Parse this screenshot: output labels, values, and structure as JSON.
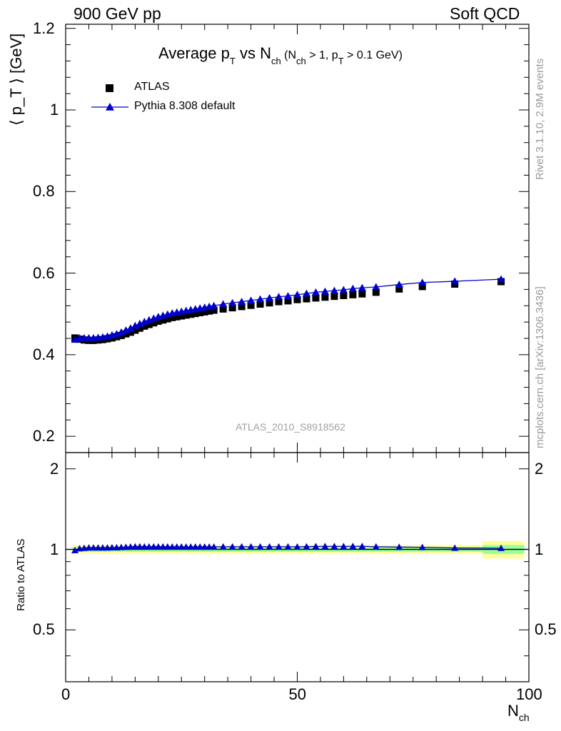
{
  "header": {
    "left": "900 GeV pp",
    "right": "Soft QCD"
  },
  "title": {
    "main": "Average p",
    "sub1": "T",
    "mid": " vs N",
    "sub2": "ch",
    "cut": " (N",
    "cut_sub1": "ch",
    "cut_mid": " > 1, p",
    "cut_sub2": "T",
    "cut_end": " > 0.1 GeV)"
  },
  "legend": [
    {
      "label": "ATLAS",
      "marker": "square",
      "color": "#000000"
    },
    {
      "label": "Pythia 8.308 default",
      "marker": "triangle",
      "color": "#0000cc"
    }
  ],
  "watermark": "ATLAS_2010_S8918562",
  "side_labels": {
    "rivet": "Rivet 3.1.10,  2.9M events",
    "mcplots": "mcplots.cern.ch [arXiv:1306.3436]"
  },
  "axes": {
    "y_top_label": "⟨ p_T ⟩  [GeV]",
    "y_bottom_label": "Ratio to ATLAS",
    "x_label_main": "N",
    "x_label_sub": "ch"
  },
  "colors": {
    "atlas": "#000000",
    "pythia": "#0000cc",
    "band_outer": "#ffff99",
    "band_inner": "#99ff99"
  },
  "chart_data": [
    {
      "type": "scatter",
      "panel": "main",
      "xlim": [
        0,
        100
      ],
      "ylim": [
        0.16,
        1.21
      ],
      "yticks": [
        0.2,
        0.4,
        0.6,
        0.8,
        1,
        1.2
      ],
      "ytick_labels": [
        "0.2",
        "0.4",
        "0.6",
        "0.8",
        "1",
        "1.2"
      ],
      "series": [
        {
          "name": "ATLAS",
          "x": [
            2,
            3,
            4,
            5,
            6,
            7,
            8,
            9,
            10,
            11,
            12,
            13,
            14,
            15,
            16,
            17,
            18,
            19,
            20,
            21,
            22,
            23,
            24,
            25,
            26,
            27,
            28,
            29,
            30,
            31,
            32,
            34,
            36,
            38,
            40,
            42,
            44,
            46,
            48,
            50,
            52,
            54,
            56,
            58,
            60,
            62,
            64,
            67,
            72,
            77,
            84,
            94
          ],
          "y": [
            0.441,
            0.438,
            0.436,
            0.435,
            0.435,
            0.436,
            0.437,
            0.439,
            0.441,
            0.444,
            0.447,
            0.451,
            0.455,
            0.46,
            0.465,
            0.47,
            0.474,
            0.478,
            0.482,
            0.485,
            0.488,
            0.491,
            0.493,
            0.495,
            0.497,
            0.499,
            0.501,
            0.503,
            0.505,
            0.507,
            0.509,
            0.512,
            0.515,
            0.518,
            0.521,
            0.524,
            0.527,
            0.53,
            0.532,
            0.535,
            0.537,
            0.539,
            0.541,
            0.543,
            0.545,
            0.547,
            0.549,
            0.553,
            0.561,
            0.567,
            0.573,
            0.579
          ]
        },
        {
          "name": "Pythia 8.308 default",
          "x": [
            2,
            3,
            4,
            5,
            6,
            7,
            8,
            9,
            10,
            11,
            12,
            13,
            14,
            15,
            16,
            17,
            18,
            19,
            20,
            21,
            22,
            23,
            24,
            25,
            26,
            27,
            28,
            29,
            30,
            31,
            32,
            34,
            36,
            38,
            40,
            42,
            44,
            46,
            48,
            50,
            52,
            54,
            56,
            58,
            60,
            62,
            64,
            67,
            72,
            77,
            84,
            94
          ],
          "y": [
            0.437,
            0.441,
            0.441,
            0.441,
            0.441,
            0.442,
            0.443,
            0.445,
            0.448,
            0.451,
            0.455,
            0.46,
            0.465,
            0.471,
            0.476,
            0.481,
            0.485,
            0.489,
            0.493,
            0.496,
            0.499,
            0.502,
            0.504,
            0.506,
            0.508,
            0.51,
            0.512,
            0.514,
            0.516,
            0.518,
            0.52,
            0.524,
            0.527,
            0.53,
            0.533,
            0.536,
            0.539,
            0.542,
            0.544,
            0.547,
            0.55,
            0.553,
            0.555,
            0.557,
            0.559,
            0.562,
            0.564,
            0.566,
            0.572,
            0.577,
            0.58,
            0.585
          ]
        }
      ]
    },
    {
      "type": "scatter",
      "panel": "ratio",
      "xlim": [
        0,
        100
      ],
      "ylim": [
        0.32,
        2.3
      ],
      "yscale": "log",
      "yticks": [
        0.5,
        1,
        2
      ],
      "ytick_labels": [
        "0.5",
        "1",
        "2"
      ],
      "xticks": [
        0,
        50,
        100
      ],
      "xtick_labels": [
        "0",
        "50",
        "100"
      ],
      "band_edges": [
        1.5,
        90,
        99
      ],
      "band_inner_half": [
        0.02,
        0.038
      ],
      "band_outer_half": [
        0.038,
        0.075
      ],
      "series": [
        {
          "name": "Pythia 8.308 default",
          "x": [
            2,
            3,
            4,
            5,
            6,
            7,
            8,
            9,
            10,
            11,
            12,
            13,
            14,
            15,
            16,
            17,
            18,
            19,
            20,
            21,
            22,
            23,
            24,
            25,
            26,
            27,
            28,
            29,
            30,
            31,
            32,
            34,
            36,
            38,
            40,
            42,
            44,
            46,
            48,
            50,
            52,
            54,
            56,
            58,
            60,
            62,
            64,
            67,
            72,
            77,
            84,
            94
          ],
          "y": [
            0.991,
            1.007,
            1.011,
            1.014,
            1.014,
            1.014,
            1.014,
            1.014,
            1.016,
            1.016,
            1.018,
            1.02,
            1.022,
            1.024,
            1.024,
            1.023,
            1.023,
            1.023,
            1.023,
            1.023,
            1.023,
            1.022,
            1.022,
            1.022,
            1.022,
            1.022,
            1.022,
            1.022,
            1.022,
            1.022,
            1.022,
            1.023,
            1.023,
            1.023,
            1.023,
            1.023,
            1.023,
            1.023,
            1.023,
            1.022,
            1.024,
            1.026,
            1.026,
            1.026,
            1.026,
            1.027,
            1.027,
            1.023,
            1.02,
            1.018,
            1.012,
            1.01
          ]
        }
      ]
    }
  ]
}
